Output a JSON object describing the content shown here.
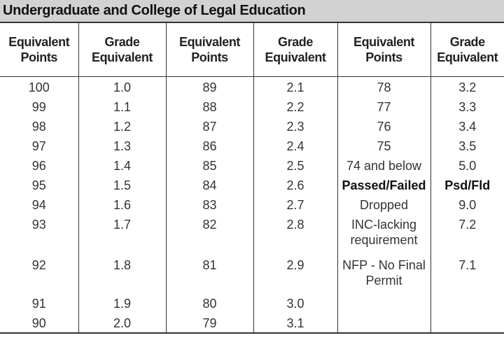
{
  "title": "Undergraduate and College of Legal Education",
  "headers": [
    "Equivalent Points",
    "Grade Equivalent",
    "Equivalent Points",
    "Grade Equivalent",
    "Equivalent Points",
    "Grade Equivalent"
  ],
  "rows": [
    [
      "100",
      "1.0",
      "89",
      "2.1",
      "78",
      "3.2"
    ],
    [
      "99",
      "1.1",
      "88",
      "2.2",
      "77",
      "3.3"
    ],
    [
      "98",
      "1.2",
      "87",
      "2.3",
      "76",
      "3.4"
    ],
    [
      "97",
      "1.3",
      "86",
      "2.4",
      "75",
      "3.5"
    ],
    [
      "96",
      "1.4",
      "85",
      "2.5",
      "74 and below",
      "5.0"
    ],
    [
      "95",
      "1.5",
      "84",
      "2.6",
      "Passed/Failed",
      "Psd/Fld"
    ],
    [
      "94",
      "1.6",
      "83",
      "2.7",
      "Dropped",
      "9.0"
    ],
    [
      "93",
      "1.7",
      "82",
      "2.8",
      "INC-lacking requirement",
      "7.2"
    ],
    [
      "92",
      "1.8",
      "81",
      "2.9",
      "NFP - No Final Permit",
      "7.1"
    ],
    [
      "91",
      "1.9",
      "80",
      "3.0",
      "",
      ""
    ],
    [
      "90",
      "2.0",
      "79",
      "3.1",
      "",
      ""
    ]
  ]
}
